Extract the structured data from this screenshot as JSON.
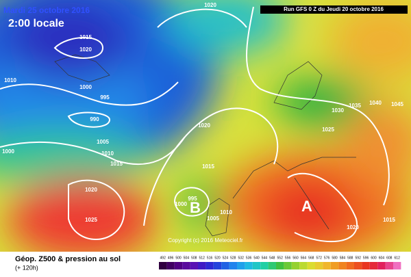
{
  "header": {
    "date": "Mardi 25 octobre 2016",
    "time": "2:00 locale",
    "run": "Run GFS 0 Z du Jeudi 20 octobre 2016"
  },
  "isobar_labels": [
    "1020",
    "1015",
    "1020",
    "1010",
    "1000",
    "995",
    "990",
    "1005",
    "1010",
    "1000",
    "1015",
    "1020",
    "1025",
    "1020",
    "1015",
    "1000",
    "995",
    "1005",
    "1010",
    "1030",
    "1035",
    "1040",
    "1045",
    "1025",
    "1020",
    "1015"
  ],
  "centers": [
    "B",
    "A"
  ],
  "copyright": "Copyright (c) 2016 Meteociel.fr",
  "footer": {
    "title": "Géop. Z500 & pression au sol",
    "subtitle": "(+ 120h)"
  },
  "scale": [
    "492",
    "496",
    "500",
    "504",
    "508",
    "512",
    "516",
    "520",
    "524",
    "528",
    "532",
    "536",
    "540",
    "544",
    "548",
    "552",
    "556",
    "560",
    "564",
    "568",
    "572",
    "576",
    "580",
    "584",
    "588",
    "592",
    "596",
    "600",
    "604",
    "608",
    "612"
  ]
}
